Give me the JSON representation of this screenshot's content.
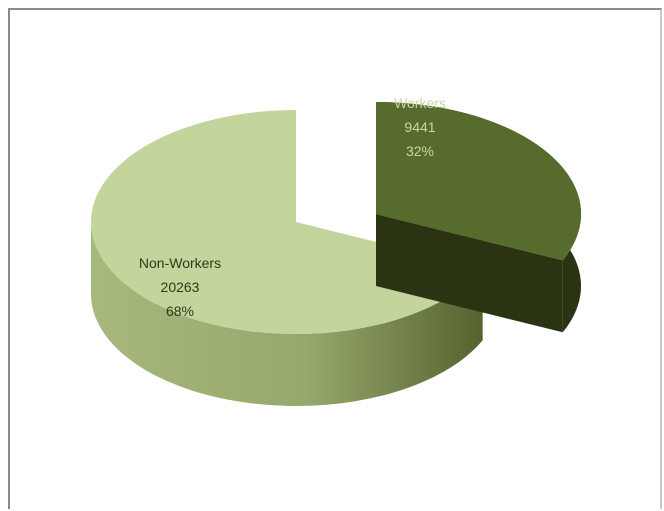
{
  "chart_data": {
    "type": "pie",
    "style": "3d-exploded",
    "slices": [
      {
        "label": "Workers",
        "value": 9441,
        "percent": "32%",
        "color": "#566b2c",
        "side_color": "#2a3413",
        "exploded": true
      },
      {
        "label": "Non-Workers",
        "value": 20263,
        "percent": "68%",
        "color": "#c3d59c",
        "side_color": "#8b9a5f",
        "exploded": false
      }
    ]
  }
}
